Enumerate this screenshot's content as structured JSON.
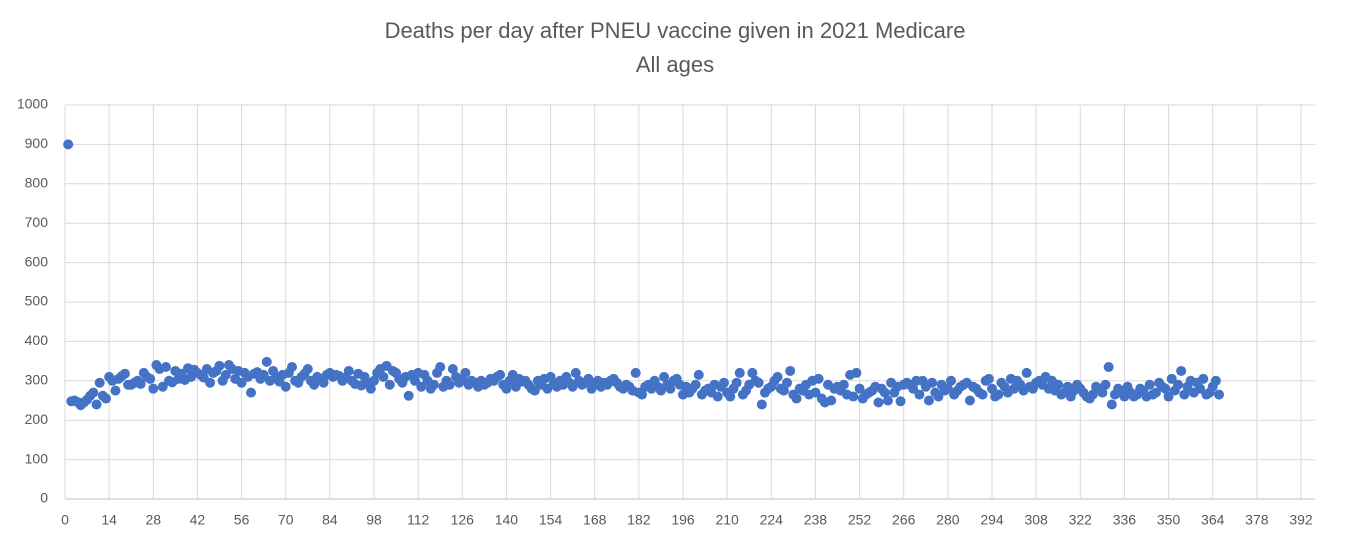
{
  "chart_data": {
    "type": "scatter",
    "title": "Deaths per day after PNEU vaccine given in 2021 Medicare",
    "subtitle": "All ages",
    "color": "#4472c4",
    "grid": true,
    "xlim": [
      0,
      392
    ],
    "xticks": [
      0,
      14,
      28,
      42,
      56,
      70,
      84,
      98,
      112,
      126,
      140,
      154,
      168,
      182,
      196,
      210,
      224,
      238,
      252,
      266,
      280,
      294,
      308,
      322,
      336,
      350,
      364,
      378,
      392
    ],
    "ylim": [
      0,
      1000
    ],
    "yticks": [
      0,
      100,
      200,
      300,
      400,
      500,
      600,
      700,
      800,
      900,
      1000
    ],
    "x": [
      1,
      2,
      3,
      4,
      5,
      6,
      7,
      8,
      9,
      10,
      11,
      12,
      13,
      14,
      15,
      16,
      17,
      18,
      19,
      20,
      21,
      22,
      23,
      24,
      25,
      26,
      27,
      28,
      29,
      30,
      31,
      32,
      33,
      34,
      35,
      36,
      37,
      38,
      39,
      40,
      41,
      42,
      43,
      44,
      45,
      46,
      47,
      48,
      49,
      50,
      51,
      52,
      53,
      54,
      55,
      56,
      57,
      58,
      59,
      60,
      61,
      62,
      63,
      64,
      65,
      66,
      67,
      68,
      69,
      70,
      71,
      72,
      73,
      74,
      75,
      76,
      77,
      78,
      79,
      80,
      81,
      82,
      83,
      84,
      85,
      86,
      87,
      88,
      89,
      90,
      91,
      92,
      93,
      94,
      95,
      96,
      97,
      98,
      99,
      100,
      101,
      102,
      103,
      104,
      105,
      106,
      107,
      108,
      109,
      110,
      111,
      112,
      113,
      114,
      115,
      116,
      117,
      118,
      119,
      120,
      121,
      122,
      123,
      124,
      125,
      126,
      127,
      128,
      129,
      130,
      131,
      132,
      133,
      134,
      135,
      136,
      137,
      138,
      139,
      140,
      141,
      142,
      143,
      144,
      145,
      146,
      147,
      148,
      149,
      150,
      151,
      152,
      153,
      154,
      155,
      156,
      157,
      158,
      159,
      160,
      161,
      162,
      163,
      164,
      165,
      166,
      167,
      168,
      169,
      170,
      171,
      172,
      173,
      174,
      175,
      176,
      177,
      178,
      179,
      180,
      181,
      182,
      183,
      184,
      185,
      186,
      187,
      188,
      189,
      190,
      191,
      192,
      193,
      194,
      195,
      196,
      197,
      198,
      199,
      200,
      201,
      202,
      203,
      204,
      205,
      206,
      207,
      208,
      209,
      210,
      211,
      212,
      213,
      214,
      215,
      216,
      217,
      218,
      219,
      220,
      221,
      222,
      223,
      224,
      225,
      226,
      227,
      228,
      229,
      230,
      231,
      232,
      233,
      234,
      235,
      236,
      237,
      238,
      239,
      240,
      241,
      242,
      243,
      244,
      245,
      246,
      247,
      248,
      249,
      250,
      251,
      252,
      253,
      254,
      255,
      256,
      257,
      258,
      259,
      260,
      261,
      262,
      263,
      264,
      265,
      266,
      267,
      268,
      269,
      270,
      271,
      272,
      273,
      274,
      275,
      276,
      277,
      278,
      279,
      280,
      281,
      282,
      283,
      284,
      285,
      286,
      287,
      288,
      289,
      290,
      291,
      292,
      293,
      294,
      295,
      296,
      297,
      298,
      299,
      300,
      301,
      302,
      303,
      304,
      305,
      306,
      307,
      308,
      309,
      310,
      311,
      312,
      313,
      314,
      315,
      316,
      317,
      318,
      319,
      320,
      321,
      322,
      323,
      324,
      325,
      326,
      327,
      328,
      329,
      330,
      331,
      332,
      333,
      334,
      335,
      336,
      337,
      338,
      339,
      340,
      341,
      342,
      343,
      344,
      345,
      346,
      347,
      348,
      349,
      350,
      351,
      352,
      353,
      354,
      355,
      356,
      357,
      358,
      359,
      360,
      361,
      362,
      363,
      364,
      365,
      366
    ],
    "values": [
      900,
      248,
      250,
      246,
      238,
      245,
      252,
      262,
      270,
      240,
      295,
      262,
      255,
      310,
      300,
      275,
      305,
      312,
      318,
      290,
      290,
      295,
      300,
      292,
      320,
      310,
      305,
      280,
      340,
      330,
      285,
      335,
      300,
      296,
      325,
      305,
      318,
      302,
      332,
      310,
      328,
      320,
      315,
      308,
      330,
      295,
      320,
      325,
      338,
      300,
      315,
      340,
      330,
      305,
      325,
      295,
      320,
      310,
      270,
      318,
      322,
      305,
      315,
      348,
      300,
      325,
      310,
      298,
      315,
      285,
      320,
      335,
      300,
      295,
      310,
      318,
      330,
      300,
      290,
      310,
      305,
      295,
      315,
      320,
      310,
      315,
      312,
      300,
      308,
      325,
      300,
      292,
      318,
      288,
      310,
      295,
      280,
      300,
      320,
      330,
      310,
      338,
      290,
      325,
      320,
      305,
      295,
      310,
      262,
      315,
      300,
      320,
      285,
      315,
      300,
      280,
      290,
      320,
      335,
      285,
      300,
      290,
      330,
      310,
      295,
      305,
      320,
      290,
      300,
      295,
      285,
      300,
      290,
      295,
      305,
      300,
      310,
      315,
      290,
      280,
      300,
      315,
      285,
      305,
      298,
      300,
      290,
      280,
      275,
      300,
      290,
      305,
      280,
      310,
      295,
      285,
      300,
      290,
      310,
      295,
      285,
      320,
      300,
      290,
      295,
      305,
      280,
      290,
      300,
      285,
      295,
      290,
      300,
      305,
      295,
      285,
      280,
      290,
      285,
      275,
      320,
      270,
      265,
      285,
      290,
      280,
      300,
      285,
      275,
      310,
      290,
      280,
      300,
      305,
      290,
      265,
      285,
      270,
      280,
      290,
      315,
      265,
      275,
      280,
      270,
      290,
      260,
      285,
      295,
      270,
      260,
      280,
      295,
      320,
      265,
      275,
      290,
      320,
      300,
      295,
      240,
      270,
      280,
      285,
      300,
      310,
      280,
      275,
      295,
      325,
      265,
      255,
      280,
      275,
      290,
      265,
      300,
      270,
      305,
      255,
      245,
      290,
      250,
      280,
      285,
      275,
      290,
      265,
      315,
      260,
      320,
      280,
      255,
      265,
      270,
      275,
      285,
      245,
      280,
      270,
      250,
      295,
      270,
      285,
      248,
      290,
      295,
      290,
      280,
      300,
      265,
      300,
      285,
      250,
      295,
      270,
      260,
      290,
      275,
      280,
      300,
      265,
      275,
      285,
      290,
      295,
      250,
      285,
      280,
      270,
      265,
      300,
      305,
      280,
      260,
      265,
      295,
      285,
      270,
      305,
      280,
      300,
      290,
      275,
      320,
      285,
      280,
      295,
      300,
      290,
      310,
      280,
      300,
      275,
      290,
      265,
      270,
      285,
      260,
      275,
      290,
      280,
      270,
      260,
      255,
      265,
      285,
      280,
      270,
      290,
      335,
      240,
      265,
      280,
      275,
      260,
      285,
      270,
      260,
      265,
      280,
      275,
      260,
      290,
      265,
      270,
      295,
      285,
      280,
      260,
      305,
      275,
      290,
      325,
      265,
      285,
      300,
      270,
      295,
      280,
      305,
      265,
      270,
      285,
      300,
      265
    ]
  }
}
